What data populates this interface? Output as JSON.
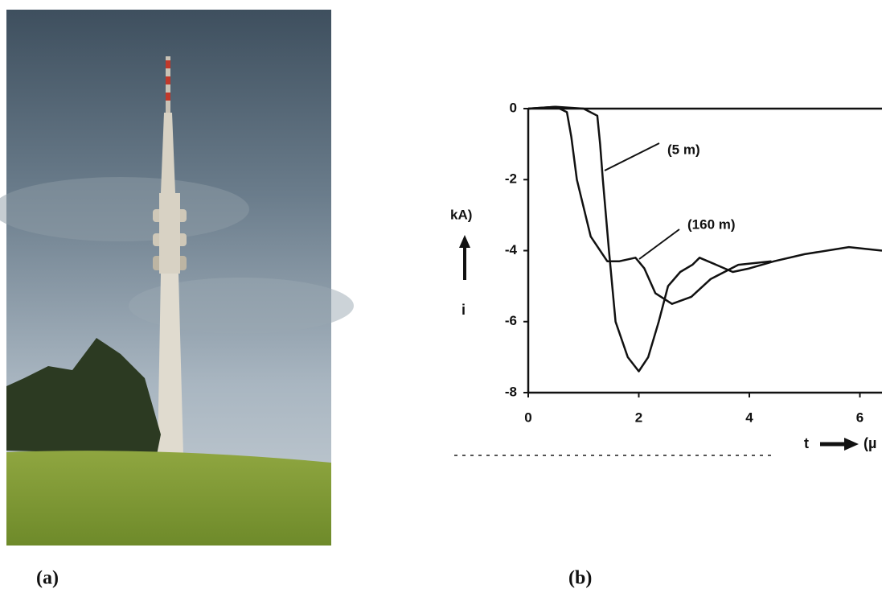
{
  "chart_data": {
    "type": "line",
    "y_label": "kA)",
    "y_symbol": "i",
    "x_label": "t",
    "x_unit": "(µ",
    "annotations": [
      "(5 m)",
      "(160 m)"
    ],
    "xlim": [
      0,
      6.4
    ],
    "ylim": [
      -8,
      0
    ],
    "xticks": [
      0,
      2,
      4,
      6
    ],
    "yticks": [
      0,
      -2,
      -4,
      -6,
      -8
    ],
    "series": [
      {
        "name": "5 m",
        "color": "#111111",
        "x": [
          0,
          0.5,
          1.0,
          1.25,
          1.3,
          1.35,
          1.46,
          1.58,
          1.8,
          2.0,
          2.17,
          2.36,
          2.53,
          2.75,
          2.97,
          3.1,
          3.4,
          3.7,
          4.0,
          4.45,
          5.0,
          5.8,
          6.4
        ],
        "values": [
          0,
          0.05,
          0,
          -0.2,
          -1.0,
          -2,
          -4,
          -6,
          -7,
          -7.4,
          -7,
          -6,
          -5,
          -4.6,
          -4.4,
          -4.2,
          -4.4,
          -4.6,
          -4.5,
          -4.3,
          -4.1,
          -3.9,
          -4.0
        ]
      },
      {
        "name": "160 m",
        "color": "#111111",
        "x": [
          0,
          0.5,
          0.7,
          0.78,
          0.88,
          1.13,
          1.43,
          1.65,
          1.94,
          2.1,
          2.3,
          2.6,
          2.95,
          3.3,
          3.8,
          4.4
        ],
        "values": [
          0,
          0.05,
          -0.1,
          -0.8,
          -2,
          -3.6,
          -4.3,
          -4.3,
          -4.2,
          -4.5,
          -5.2,
          -5.5,
          -5.3,
          -4.8,
          -4.4,
          -4.3
        ]
      }
    ]
  },
  "captions": [
    "(a)",
    "(b)"
  ]
}
